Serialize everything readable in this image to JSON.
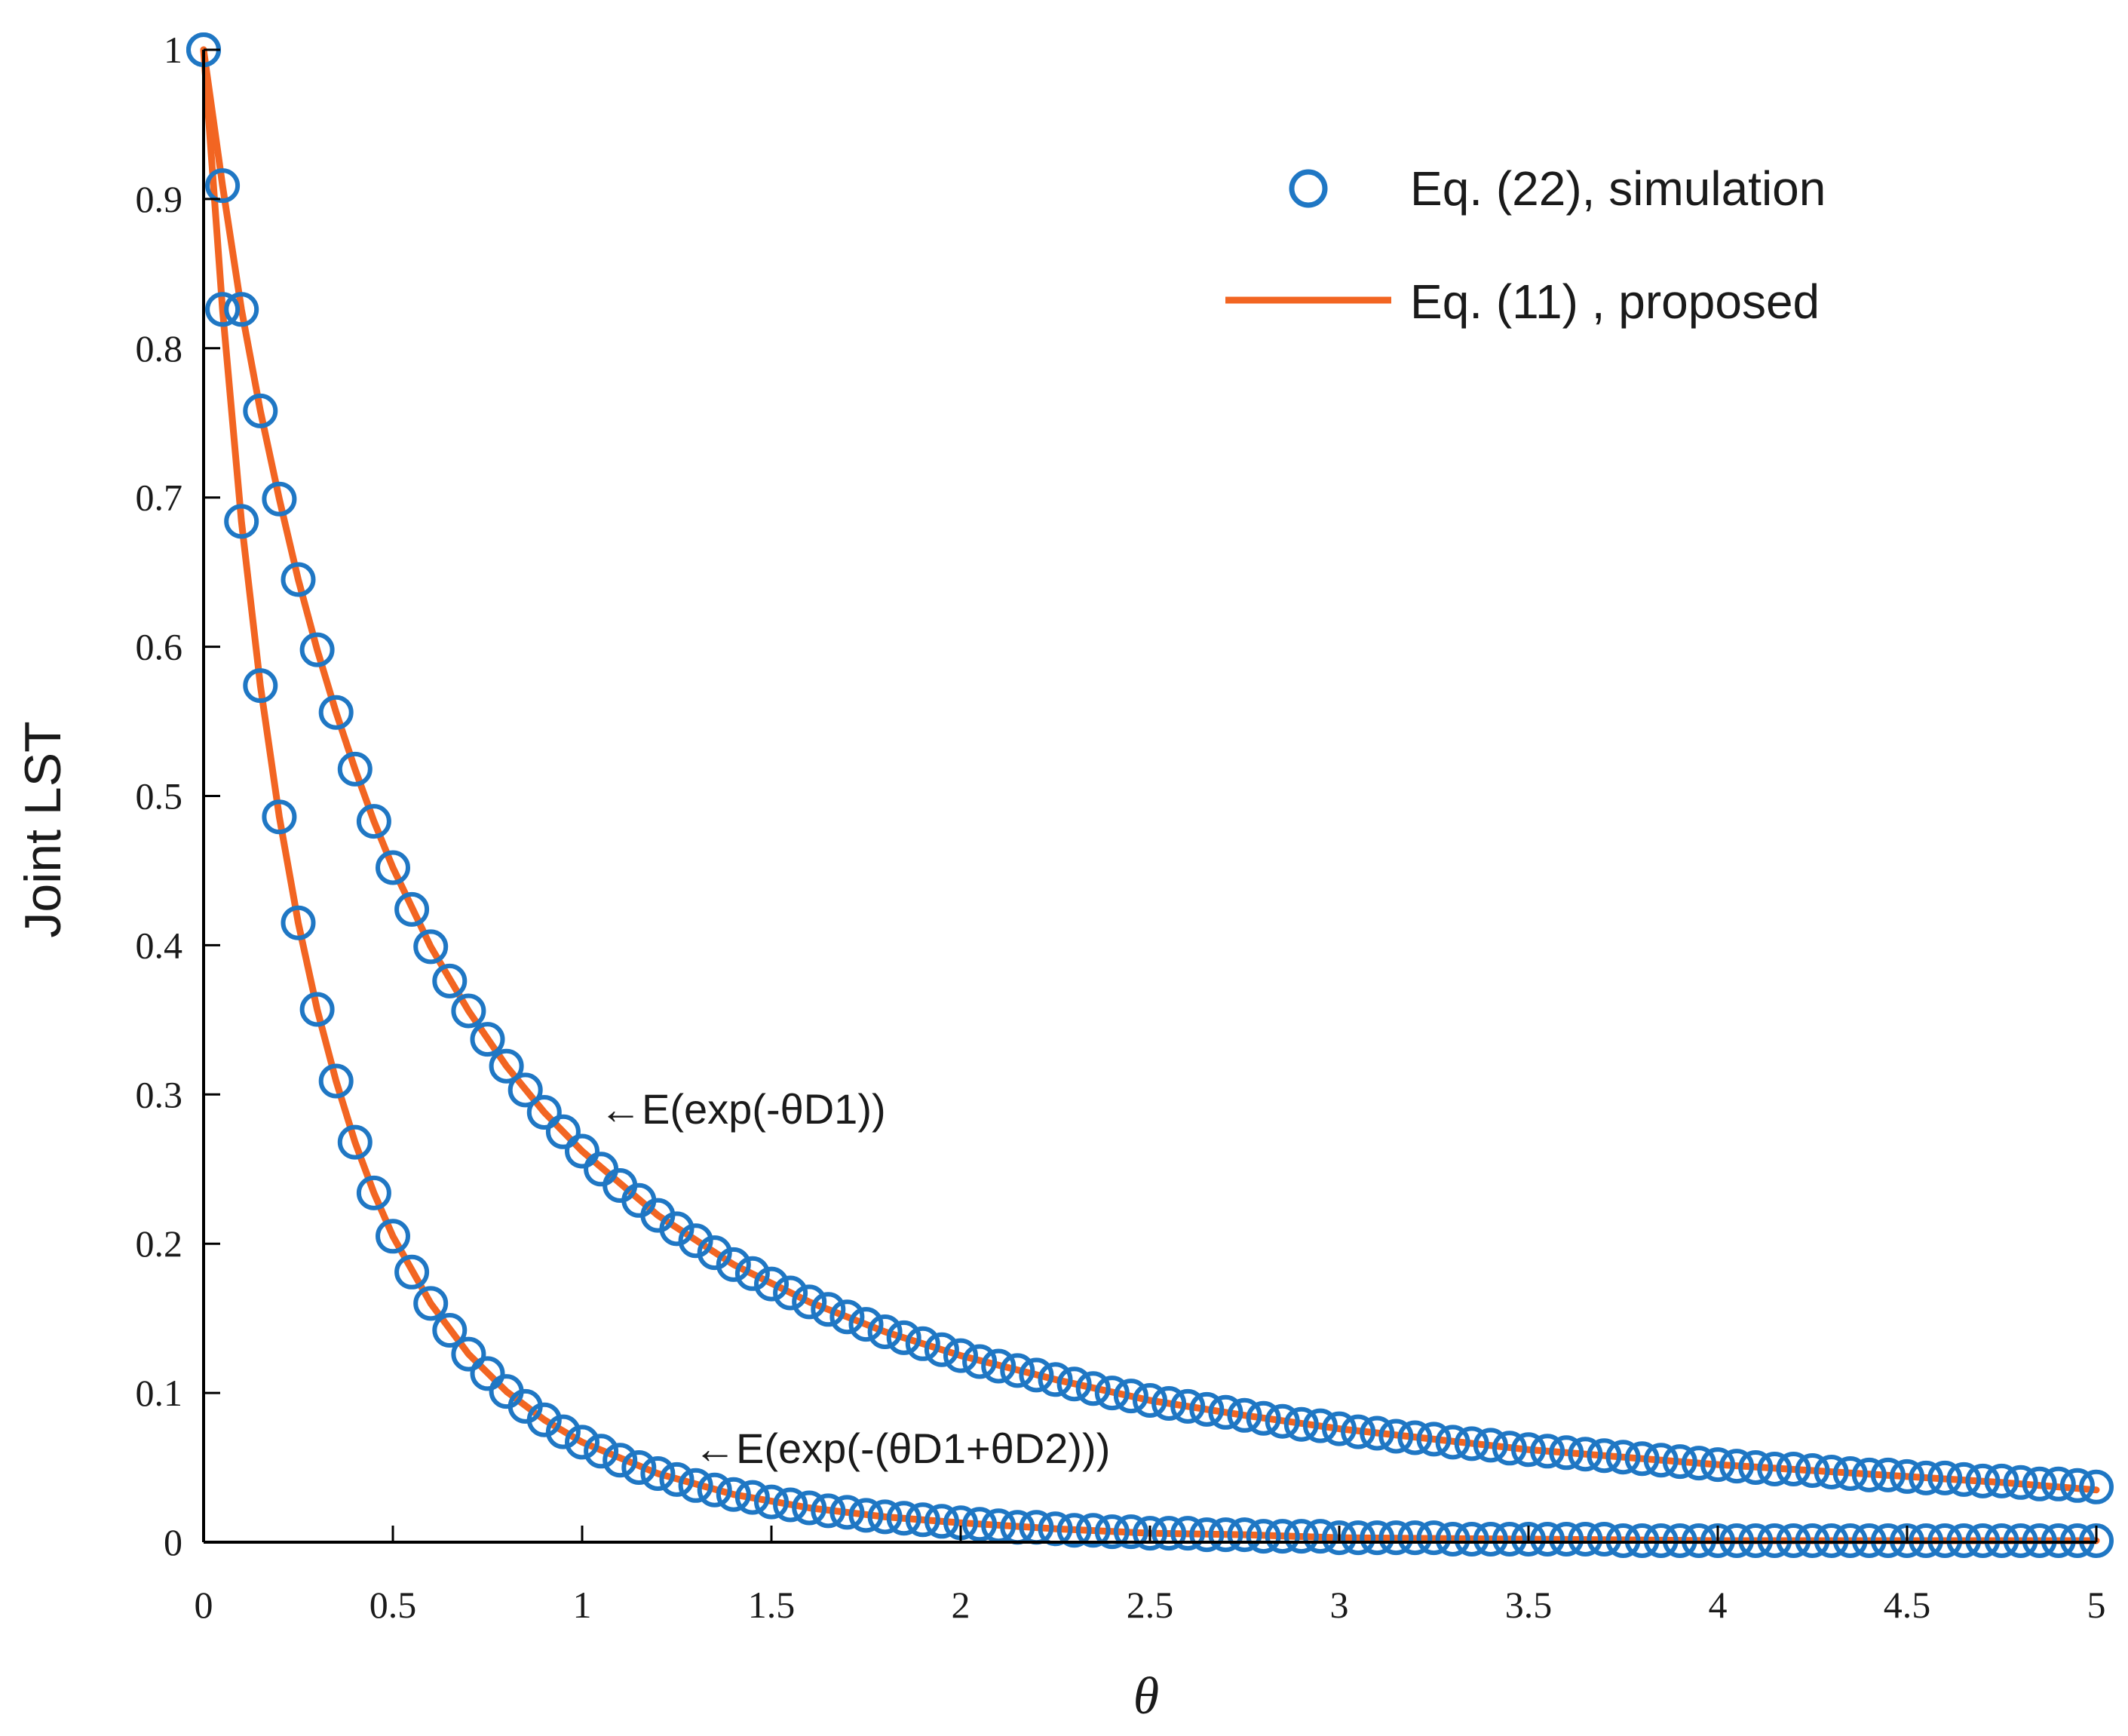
{
  "chart_data": {
    "type": "line",
    "title": "",
    "xlabel": "θ",
    "ylabel": "Joint LST",
    "xlim": [
      0,
      5
    ],
    "ylim": [
      0,
      1
    ],
    "xticks": [
      "0",
      "0.5",
      "1",
      "1.5",
      "2",
      "2.5",
      "3",
      "3.5",
      "4",
      "4.5",
      "5"
    ],
    "yticks": [
      "0",
      "0.1",
      "0.2",
      "0.3",
      "0.4",
      "0.5",
      "0.6",
      "0.7",
      "0.8",
      "0.9",
      "1"
    ],
    "grid": false,
    "legend_position": "top-right",
    "legend": [
      {
        "label": "Eq. (22), simulation",
        "marker": "circle",
        "color": "#1f77c4"
      },
      {
        "label": "Eq. (11) , proposed",
        "marker": "line",
        "color": "#f26522"
      }
    ],
    "annotations": [
      {
        "text": "←E(exp(-θD1))",
        "at": [
          1.0,
          0.29
        ]
      },
      {
        "text": "←E(exp(-(θD1+θD2)))",
        "at": [
          1.25,
          0.06
        ]
      }
    ],
    "series": [
      {
        "name": "E(exp(-θD1)) — Eq. (22), simulation",
        "kind": "markers",
        "x": [
          0,
          0.05,
          0.1,
          0.15,
          0.2,
          0.25,
          0.3,
          0.35,
          0.4,
          0.45,
          0.5,
          0.55,
          0.6,
          0.65,
          0.7,
          0.75,
          0.8,
          0.85,
          0.9,
          0.95,
          1.0,
          1.05,
          1.1,
          1.15,
          1.2,
          1.25,
          1.3,
          1.35,
          1.4,
          1.45,
          1.5,
          1.55,
          1.6,
          1.65,
          1.7,
          1.75,
          1.8,
          1.85,
          1.9,
          1.95,
          2.0,
          2.05,
          2.1,
          2.15,
          2.2,
          2.25,
          2.3,
          2.35,
          2.4,
          2.45,
          2.5,
          2.55,
          2.6,
          2.65,
          2.7,
          2.75,
          2.8,
          2.85,
          2.9,
          2.95,
          3.0,
          3.05,
          3.1,
          3.15,
          3.2,
          3.25,
          3.3,
          3.35,
          3.4,
          3.45,
          3.5,
          3.55,
          3.6,
          3.65,
          3.7,
          3.75,
          3.8,
          3.85,
          3.9,
          3.95,
          4.0,
          4.05,
          4.1,
          4.15,
          4.2,
          4.25,
          4.3,
          4.35,
          4.4,
          4.45,
          4.5,
          4.55,
          4.6,
          4.65,
          4.7,
          4.75,
          4.8,
          4.85,
          4.9,
          4.95,
          5.0
        ],
        "y": [
          1.0,
          0.909,
          0.826,
          0.758,
          0.699,
          0.645,
          0.598,
          0.556,
          0.518,
          0.483,
          0.452,
          0.424,
          0.399,
          0.376,
          0.356,
          0.337,
          0.319,
          0.303,
          0.288,
          0.275,
          0.262,
          0.25,
          0.239,
          0.229,
          0.219,
          0.21,
          0.202,
          0.194,
          0.186,
          0.18,
          0.173,
          0.167,
          0.161,
          0.156,
          0.151,
          0.146,
          0.141,
          0.137,
          0.133,
          0.129,
          0.125,
          0.121,
          0.118,
          0.115,
          0.112,
          0.109,
          0.106,
          0.103,
          0.1,
          0.098,
          0.095,
          0.093,
          0.091,
          0.089,
          0.087,
          0.085,
          0.083,
          0.081,
          0.079,
          0.078,
          0.076,
          0.074,
          0.073,
          0.071,
          0.07,
          0.069,
          0.067,
          0.066,
          0.065,
          0.063,
          0.062,
          0.061,
          0.06,
          0.059,
          0.058,
          0.057,
          0.056,
          0.055,
          0.054,
          0.053,
          0.052,
          0.051,
          0.05,
          0.049,
          0.049,
          0.048,
          0.047,
          0.046,
          0.045,
          0.045,
          0.044,
          0.043,
          0.043,
          0.042,
          0.041,
          0.041,
          0.04,
          0.039,
          0.039,
          0.038,
          0.037
        ]
      },
      {
        "name": "E(exp(-θD1)) — Eq. (11), proposed",
        "kind": "line",
        "x": [
          0,
          0.05,
          0.1,
          0.15,
          0.2,
          0.25,
          0.3,
          0.35,
          0.4,
          0.45,
          0.5,
          0.6,
          0.7,
          0.8,
          0.9,
          1.0,
          1.2,
          1.4,
          1.6,
          1.8,
          2.0,
          2.25,
          2.5,
          2.75,
          3.0,
          3.25,
          3.5,
          3.75,
          4.0,
          4.25,
          4.5,
          4.75,
          5.0
        ],
        "y": [
          1.0,
          0.909,
          0.826,
          0.758,
          0.699,
          0.645,
          0.598,
          0.556,
          0.518,
          0.483,
          0.452,
          0.399,
          0.356,
          0.319,
          0.288,
          0.262,
          0.219,
          0.186,
          0.161,
          0.141,
          0.125,
          0.109,
          0.095,
          0.085,
          0.076,
          0.069,
          0.062,
          0.057,
          0.052,
          0.048,
          0.044,
          0.04,
          0.035
        ]
      },
      {
        "name": "E(exp(-(θD1+θD2))) — Eq. (22), simulation",
        "kind": "markers",
        "x": [
          0,
          0.05,
          0.1,
          0.15,
          0.2,
          0.25,
          0.3,
          0.35,
          0.4,
          0.45,
          0.5,
          0.55,
          0.6,
          0.65,
          0.7,
          0.75,
          0.8,
          0.85,
          0.9,
          0.95,
          1.0,
          1.05,
          1.1,
          1.15,
          1.2,
          1.25,
          1.3,
          1.35,
          1.4,
          1.45,
          1.5,
          1.55,
          1.6,
          1.65,
          1.7,
          1.75,
          1.8,
          1.85,
          1.9,
          1.95,
          2.0,
          2.05,
          2.1,
          2.15,
          2.2,
          2.25,
          2.3,
          2.35,
          2.4,
          2.45,
          2.5,
          2.55,
          2.6,
          2.65,
          2.7,
          2.75,
          2.8,
          2.85,
          2.9,
          2.95,
          3.0,
          3.05,
          3.1,
          3.15,
          3.2,
          3.25,
          3.3,
          3.35,
          3.4,
          3.45,
          3.5,
          3.55,
          3.6,
          3.65,
          3.7,
          3.75,
          3.8,
          3.85,
          3.9,
          3.95,
          4.0,
          4.05,
          4.1,
          4.15,
          4.2,
          4.25,
          4.3,
          4.35,
          4.4,
          4.45,
          4.5,
          4.55,
          4.6,
          4.65,
          4.7,
          4.75,
          4.8,
          4.85,
          4.9,
          4.95,
          5.0
        ],
        "y": [
          1.0,
          0.826,
          0.684,
          0.574,
          0.486,
          0.415,
          0.357,
          0.309,
          0.268,
          0.234,
          0.205,
          0.181,
          0.16,
          0.142,
          0.126,
          0.113,
          0.101,
          0.091,
          0.082,
          0.074,
          0.067,
          0.061,
          0.055,
          0.05,
          0.046,
          0.042,
          0.038,
          0.035,
          0.032,
          0.03,
          0.027,
          0.025,
          0.023,
          0.021,
          0.02,
          0.018,
          0.017,
          0.016,
          0.015,
          0.014,
          0.013,
          0.012,
          0.011,
          0.01,
          0.01,
          0.009,
          0.008,
          0.008,
          0.007,
          0.007,
          0.006,
          0.006,
          0.006,
          0.005,
          0.005,
          0.005,
          0.004,
          0.004,
          0.004,
          0.004,
          0.003,
          0.003,
          0.003,
          0.003,
          0.003,
          0.003,
          0.002,
          0.002,
          0.002,
          0.002,
          0.002,
          0.002,
          0.002,
          0.002,
          0.002,
          0.001,
          0.001,
          0.001,
          0.001,
          0.001,
          0.001,
          0.001,
          0.001,
          0.001,
          0.001,
          0.001,
          0.001,
          0.001,
          0.001,
          0.001,
          0.001,
          0.001,
          0.001,
          0.001,
          0.001,
          0.001,
          0.001,
          0.001,
          0.001,
          0.001,
          0.001
        ]
      },
      {
        "name": "E(exp(-(θD1+θD2))) — Eq. (11), proposed",
        "kind": "line",
        "x": [
          0,
          0.05,
          0.1,
          0.15,
          0.2,
          0.25,
          0.3,
          0.35,
          0.4,
          0.45,
          0.5,
          0.6,
          0.7,
          0.8,
          0.9,
          1.0,
          1.2,
          1.4,
          1.6,
          1.8,
          2.0,
          2.25,
          2.5,
          2.75,
          3.0,
          3.5,
          4.0,
          4.5,
          5.0
        ],
        "y": [
          1.0,
          0.826,
          0.684,
          0.574,
          0.486,
          0.415,
          0.357,
          0.309,
          0.268,
          0.234,
          0.205,
          0.16,
          0.126,
          0.101,
          0.082,
          0.067,
          0.046,
          0.032,
          0.023,
          0.017,
          0.013,
          0.009,
          0.006,
          0.005,
          0.003,
          0.002,
          0.001,
          0.001,
          0.001
        ]
      }
    ]
  }
}
